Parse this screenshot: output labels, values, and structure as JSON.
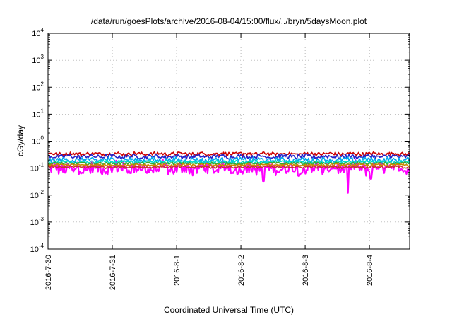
{
  "chart_data": {
    "type": "line",
    "title": "/data/run/goesPlots/archive/2016-08-04/15:00/flux/../bryn/5daysMoon.plot",
    "xlabel": "Coordinated Universal Time (UTC)",
    "ylabel": "cGy/day",
    "yscale": "log",
    "ylim": [
      0.0001,
      10000
    ],
    "xlim": [
      "2016-07-30T00:00",
      "2016-08-04T15:00"
    ],
    "grid": "dotted",
    "legend": "none",
    "y_ticks": [
      {
        "value": 0.0001,
        "base": "10",
        "exp": "-4"
      },
      {
        "value": 0.001,
        "base": "10",
        "exp": "-3"
      },
      {
        "value": 0.01,
        "base": "10",
        "exp": "-2"
      },
      {
        "value": 0.1,
        "base": "10",
        "exp": "-1"
      },
      {
        "value": 1,
        "base": "10",
        "exp": "0"
      },
      {
        "value": 10,
        "base": "10",
        "exp": "1"
      },
      {
        "value": 100,
        "base": "10",
        "exp": "2"
      },
      {
        "value": 1000,
        "base": "10",
        "exp": "3"
      },
      {
        "value": 10000,
        "base": "10",
        "exp": "4"
      }
    ],
    "x_ticks": [
      {
        "value": "2016-07-30",
        "label": "2016-7-30"
      },
      {
        "value": "2016-07-31",
        "label": "2016-7-31"
      },
      {
        "value": "2016-08-01",
        "label": "2016-8-1"
      },
      {
        "value": "2016-08-02",
        "label": "2016-8-2"
      },
      {
        "value": "2016-08-03",
        "label": "2016-8-3"
      },
      {
        "value": "2016-08-04",
        "label": "2016-8-4"
      }
    ],
    "series": [
      {
        "color": "#ff00ff",
        "typical": 0.1,
        "noise": 0.45,
        "dips": [
          {
            "at": "2016-08-02T08:30",
            "value": 0.033
          },
          {
            "at": "2016-08-03T16:00",
            "value": 0.012
          },
          {
            "at": "2016-08-04T00:30",
            "value": 0.04
          }
        ]
      },
      {
        "color": "#cc0000",
        "typical": 0.34,
        "noise": 0.12
      },
      {
        "color": "#2222cc",
        "typical": 0.27,
        "noise": 0.14
      },
      {
        "color": "#00aaee",
        "typical": 0.2,
        "noise": 0.18
      },
      {
        "color": "#00ddcc",
        "typical": 0.17,
        "noise": 0.1
      },
      {
        "color": "#33aa33",
        "typical": 0.15,
        "noise": 0.08
      },
      {
        "color": "#cc8800",
        "typical": 0.13,
        "noise": 0.08
      },
      {
        "color": "#cc3333",
        "typical": 0.11,
        "noise": 0.08
      }
    ]
  }
}
